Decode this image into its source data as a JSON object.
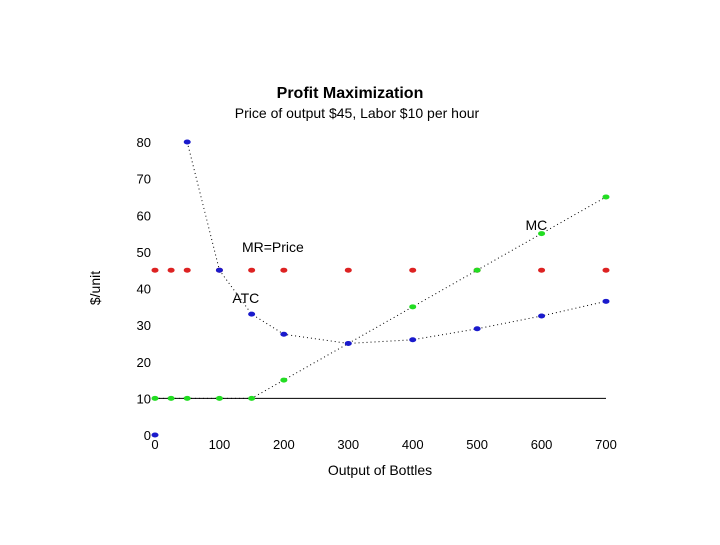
{
  "chart_data": {
    "type": "scatter",
    "title": "Profit Maximization",
    "subtitle": "Price of output $45, Labor $10 per hour",
    "xlabel": "Output of Bottles",
    "ylabel": "$/unit",
    "xlim": [
      0,
      700
    ],
    "ylim": [
      0,
      80
    ],
    "xticks": [
      0,
      100,
      200,
      300,
      400,
      500,
      600,
      700
    ],
    "yticks": [
      0,
      10,
      20,
      30,
      40,
      50,
      60,
      70,
      80
    ],
    "grid": false,
    "series": [
      {
        "label": "MR=Price",
        "color": "#dd2222",
        "connected": false,
        "points": [
          [
            0,
            45
          ],
          [
            25,
            45
          ],
          [
            50,
            45
          ],
          [
            100,
            45
          ],
          [
            150,
            45
          ],
          [
            200,
            45
          ],
          [
            300,
            45
          ],
          [
            400,
            45
          ],
          [
            500,
            45
          ],
          [
            600,
            45
          ],
          [
            700,
            45
          ]
        ]
      },
      {
        "label": "ATC",
        "color": "#1a1acc",
        "connected": true,
        "points": [
          [
            0,
            0
          ],
          [
            50,
            80
          ],
          [
            100,
            45
          ],
          [
            150,
            33
          ],
          [
            200,
            27.5
          ],
          [
            300,
            25
          ],
          [
            400,
            26
          ],
          [
            500,
            29
          ],
          [
            600,
            32.5
          ],
          [
            700,
            36.5
          ]
        ]
      },
      {
        "label": "MC",
        "color": "#22dd22",
        "connected": true,
        "points": [
          [
            0,
            10
          ],
          [
            25,
            10
          ],
          [
            50,
            10
          ],
          [
            100,
            10
          ],
          [
            150,
            10
          ],
          [
            200,
            15
          ],
          [
            400,
            35
          ],
          [
            500,
            45
          ],
          [
            600,
            55
          ],
          [
            700,
            65
          ]
        ]
      }
    ],
    "reference_lines": [
      {
        "y": 10,
        "x_from": 0,
        "x_to": 700
      }
    ],
    "annotations": [
      {
        "text": "MR=Price",
        "x": 135,
        "y": 50
      },
      {
        "text": "ATC",
        "x": 120,
        "y": 36
      },
      {
        "text": "MC",
        "x": 575,
        "y": 56
      }
    ]
  }
}
